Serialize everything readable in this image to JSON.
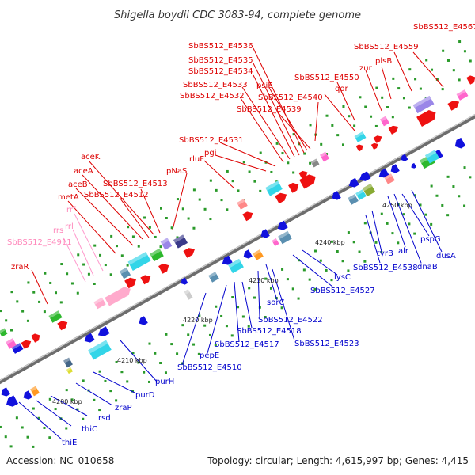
{
  "title": "Shigella boydii CDC 3083-94, complete genome",
  "footer": {
    "accession": "Accession: NC_010658",
    "summary": "Topology: circular; Length: 4,615,997 bp; Genes: 4,415"
  },
  "colors": {
    "upper_label": "#dd0000",
    "lower_label": "#0000cc",
    "rna_label": "#ff88bb",
    "upper_feature": "#ee1111",
    "lower_feature": "#1111dd",
    "backbone": "#888888",
    "tick": "#22aa22"
  },
  "ticks": [
    {
      "label": "4200 kbp"
    },
    {
      "label": "4210 kbp"
    },
    {
      "label": "4220 kbp"
    },
    {
      "label": "4230 kbp"
    },
    {
      "label": "4240 kbp"
    },
    {
      "label": "4250 kbp"
    }
  ],
  "upper_labels": [
    {
      "text": "SbBS512_E4567"
    },
    {
      "text": "SbBS512_E4559"
    },
    {
      "text": "plsB"
    },
    {
      "text": "zur"
    },
    {
      "text": "SbBS512_E4550"
    },
    {
      "text": "qor"
    },
    {
      "text": "SbBS512_E4540"
    },
    {
      "text": "SbBS512_E4539"
    },
    {
      "text": "psiE"
    },
    {
      "text": "SbBS512_E4536"
    },
    {
      "text": "SbBS512_E4535"
    },
    {
      "text": "SbBS512_E4534"
    },
    {
      "text": "SbBS512_E4533"
    },
    {
      "text": "SbBS512_E4532"
    },
    {
      "text": "SbBS512_E4531"
    },
    {
      "text": "pgi"
    },
    {
      "text": "rluF"
    },
    {
      "text": "pNaS"
    },
    {
      "text": "aceK"
    },
    {
      "text": "aceA"
    },
    {
      "text": "SbBS512_E4513"
    },
    {
      "text": "aceB"
    },
    {
      "text": "SbBS512_E4512"
    },
    {
      "text": "metA"
    },
    {
      "text": "rrf"
    },
    {
      "text": "rrl"
    },
    {
      "text": "rrs"
    },
    {
      "text": "SbBS512_E4911"
    },
    {
      "text": "zraR"
    }
  ],
  "lower_labels": [
    {
      "text": "pspG"
    },
    {
      "text": "dusA"
    },
    {
      "text": "alr"
    },
    {
      "text": "dnaB"
    },
    {
      "text": "tyrB"
    },
    {
      "text": "SbBS512_E4538"
    },
    {
      "text": "lysC"
    },
    {
      "text": "SbBS512_E4527"
    },
    {
      "text": "sorC"
    },
    {
      "text": "SbBS512_E4522"
    },
    {
      "text": "SbBS512_E4518"
    },
    {
      "text": "SbBS512_E4523"
    },
    {
      "text": "SbBS512_E4517"
    },
    {
      "text": "pepE"
    },
    {
      "text": "SbBS512_E4510"
    },
    {
      "text": "purH"
    },
    {
      "text": "purD"
    },
    {
      "text": "zraP"
    },
    {
      "text": "rsd"
    },
    {
      "text": "thiC"
    },
    {
      "text": "thiE"
    }
  ]
}
